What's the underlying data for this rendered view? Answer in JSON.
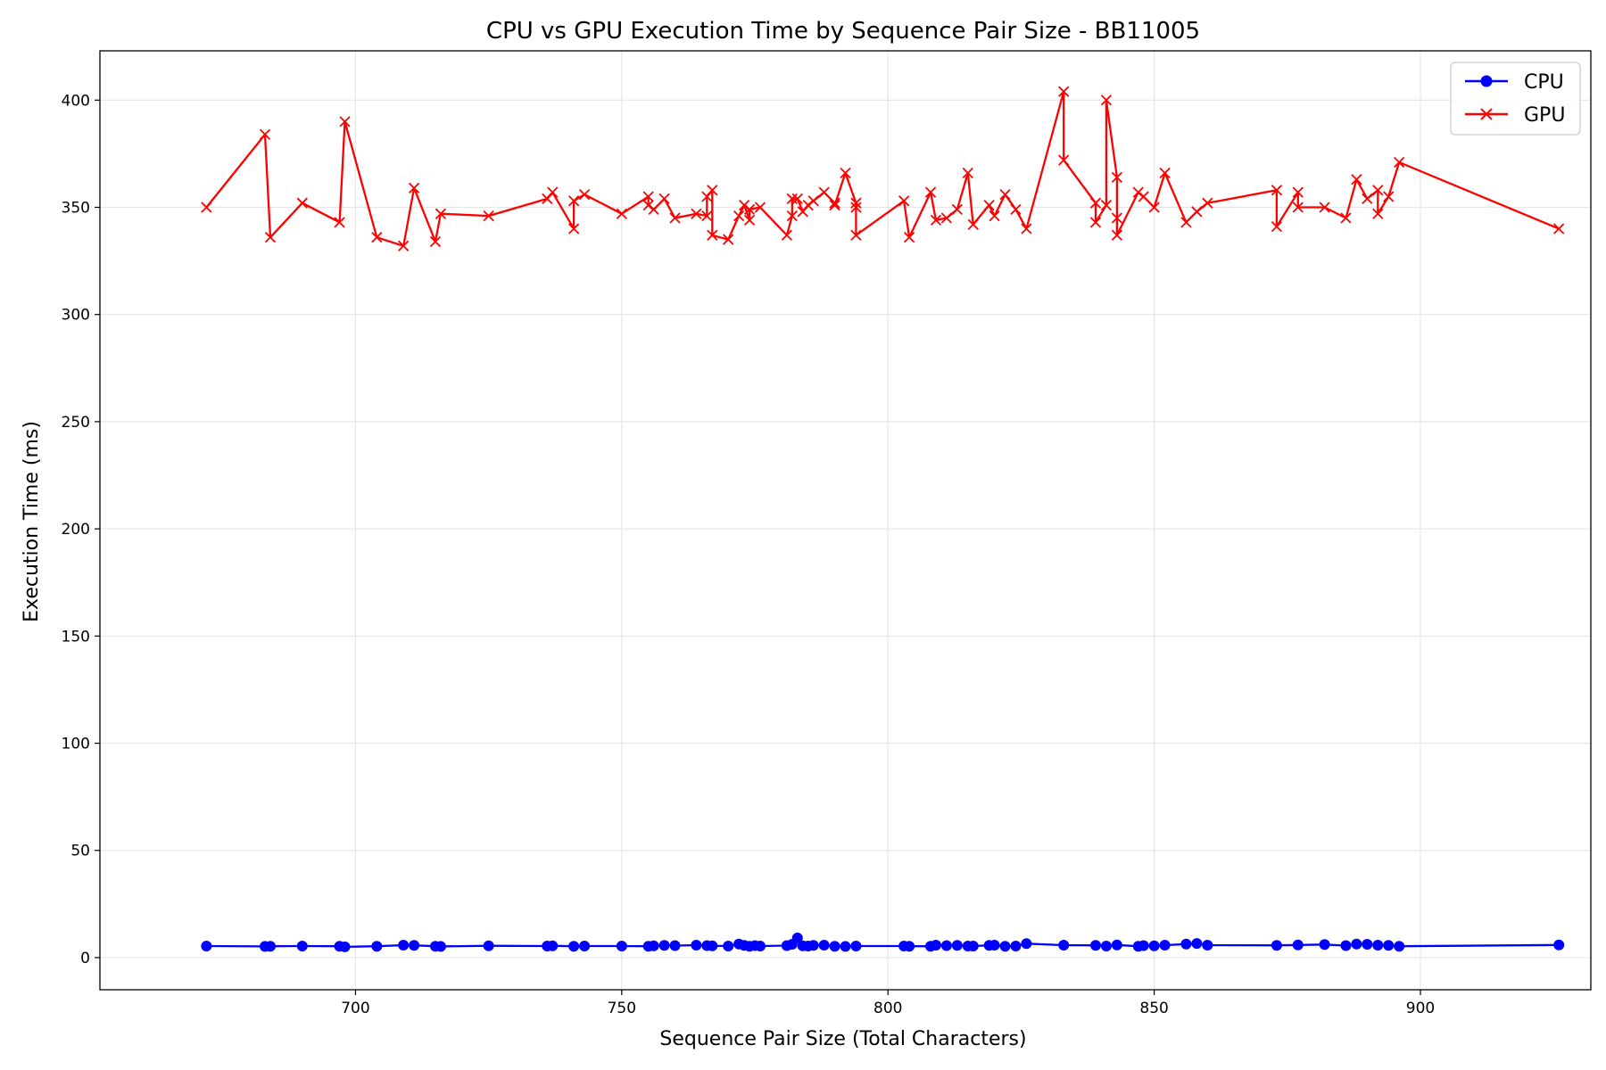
{
  "chart_data": {
    "type": "line",
    "title": "CPU vs GPU Execution Time by Sequence Pair Size - BB11005",
    "xlabel": "Sequence Pair Size (Total Characters)",
    "ylabel": "Execution Time (ms)",
    "xlim": [
      652,
      932
    ],
    "ylim": [
      -15,
      423
    ],
    "xticks": [
      700,
      750,
      800,
      850,
      900
    ],
    "yticks": [
      0,
      50,
      100,
      150,
      200,
      250,
      300,
      350,
      400
    ],
    "grid": true,
    "legend_position": "top-right",
    "colors": {
      "CPU": "#0000ff",
      "GPU": "#ff0000"
    },
    "series": [
      {
        "name": "CPU",
        "marker": "circle",
        "points": [
          [
            672,
            5.4
          ],
          [
            683,
            5.2
          ],
          [
            684,
            5.3
          ],
          [
            690,
            5.4
          ],
          [
            697,
            5.3
          ],
          [
            698,
            5.0
          ],
          [
            704,
            5.3
          ],
          [
            709,
            5.8
          ],
          [
            711,
            5.7
          ],
          [
            715,
            5.3
          ],
          [
            716,
            5.2
          ],
          [
            725,
            5.5
          ],
          [
            736,
            5.4
          ],
          [
            737,
            5.5
          ],
          [
            741,
            5.3
          ],
          [
            743,
            5.4
          ],
          [
            750,
            5.4
          ],
          [
            755,
            5.3
          ],
          [
            756,
            5.5
          ],
          [
            758,
            5.7
          ],
          [
            760,
            5.6
          ],
          [
            764,
            5.8
          ],
          [
            766,
            5.6
          ],
          [
            767,
            5.5
          ],
          [
            770,
            5.4
          ],
          [
            772,
            6.3
          ],
          [
            773,
            5.7
          ],
          [
            774,
            5.3
          ],
          [
            775,
            5.6
          ],
          [
            776,
            5.4
          ],
          [
            781,
            5.6
          ],
          [
            782,
            6.2
          ],
          [
            783,
            9.2
          ],
          [
            784,
            5.5
          ],
          [
            785,
            5.4
          ],
          [
            786,
            5.7
          ],
          [
            788,
            5.8
          ],
          [
            790,
            5.3
          ],
          [
            792,
            5.2
          ],
          [
            794,
            5.4
          ],
          [
            803,
            5.4
          ],
          [
            804,
            5.3
          ],
          [
            808,
            5.3
          ],
          [
            809,
            5.8
          ],
          [
            811,
            5.6
          ],
          [
            813,
            5.7
          ],
          [
            815,
            5.4
          ],
          [
            816,
            5.4
          ],
          [
            819,
            5.7
          ],
          [
            820,
            5.8
          ],
          [
            822,
            5.3
          ],
          [
            824,
            5.4
          ],
          [
            826,
            6.5
          ],
          [
            833,
            5.8
          ],
          [
            839,
            5.7
          ],
          [
            841,
            5.4
          ],
          [
            843,
            5.9
          ],
          [
            847,
            5.3
          ],
          [
            848,
            5.6
          ],
          [
            850,
            5.5
          ],
          [
            852,
            5.8
          ],
          [
            856,
            6.3
          ],
          [
            858,
            6.6
          ],
          [
            860,
            5.8
          ],
          [
            873,
            5.7
          ],
          [
            877,
            5.9
          ],
          [
            882,
            6.1
          ],
          [
            886,
            5.6
          ],
          [
            888,
            6.3
          ],
          [
            890,
            6.2
          ],
          [
            892,
            5.8
          ],
          [
            894,
            5.7
          ],
          [
            896,
            5.3
          ],
          [
            926,
            5.9
          ]
        ]
      },
      {
        "name": "GPU",
        "marker": "x",
        "points": [
          [
            672,
            350
          ],
          [
            683,
            384
          ],
          [
            684,
            336
          ],
          [
            690,
            352
          ],
          [
            697,
            343
          ],
          [
            698,
            390
          ],
          [
            704,
            336
          ],
          [
            709,
            332
          ],
          [
            711,
            359
          ],
          [
            715,
            334
          ],
          [
            716,
            347
          ],
          [
            725,
            346
          ],
          [
            736,
            354
          ],
          [
            737,
            357
          ],
          [
            741,
            340
          ],
          [
            741,
            353
          ],
          [
            743,
            356
          ],
          [
            750,
            347
          ],
          [
            755,
            355
          ],
          [
            755,
            351
          ],
          [
            756,
            349
          ],
          [
            758,
            354
          ],
          [
            760,
            345
          ],
          [
            764,
            347
          ],
          [
            766,
            346
          ],
          [
            766,
            355
          ],
          [
            767,
            358
          ],
          [
            767,
            337
          ],
          [
            770,
            335
          ],
          [
            772,
            346
          ],
          [
            773,
            351
          ],
          [
            774,
            344
          ],
          [
            774,
            349
          ],
          [
            776,
            350
          ],
          [
            781,
            337
          ],
          [
            782,
            346
          ],
          [
            782,
            354
          ],
          [
            783,
            354
          ],
          [
            784,
            348
          ],
          [
            785,
            351
          ],
          [
            786,
            353
          ],
          [
            788,
            357
          ],
          [
            790,
            352
          ],
          [
            790,
            351
          ],
          [
            792,
            366
          ],
          [
            794,
            352
          ],
          [
            794,
            350
          ],
          [
            794,
            337
          ],
          [
            803,
            353
          ],
          [
            804,
            336
          ],
          [
            808,
            357
          ],
          [
            809,
            344
          ],
          [
            811,
            345
          ],
          [
            813,
            349
          ],
          [
            815,
            366
          ],
          [
            816,
            342
          ],
          [
            819,
            351
          ],
          [
            820,
            346
          ],
          [
            822,
            356
          ],
          [
            824,
            349
          ],
          [
            826,
            340
          ],
          [
            833,
            404
          ],
          [
            833,
            372
          ],
          [
            839,
            352
          ],
          [
            839,
            343
          ],
          [
            841,
            351
          ],
          [
            841,
            400
          ],
          [
            843,
            364
          ],
          [
            843,
            345
          ],
          [
            843,
            337
          ],
          [
            847,
            357
          ],
          [
            848,
            355
          ],
          [
            850,
            350
          ],
          [
            852,
            366
          ],
          [
            856,
            343
          ],
          [
            858,
            348
          ],
          [
            860,
            352
          ],
          [
            873,
            358
          ],
          [
            873,
            341
          ],
          [
            877,
            357
          ],
          [
            877,
            350
          ],
          [
            882,
            350
          ],
          [
            886,
            345
          ],
          [
            888,
            363
          ],
          [
            890,
            354
          ],
          [
            892,
            358
          ],
          [
            892,
            347
          ],
          [
            894,
            355
          ],
          [
            896,
            371
          ],
          [
            926,
            340
          ]
        ]
      }
    ]
  }
}
